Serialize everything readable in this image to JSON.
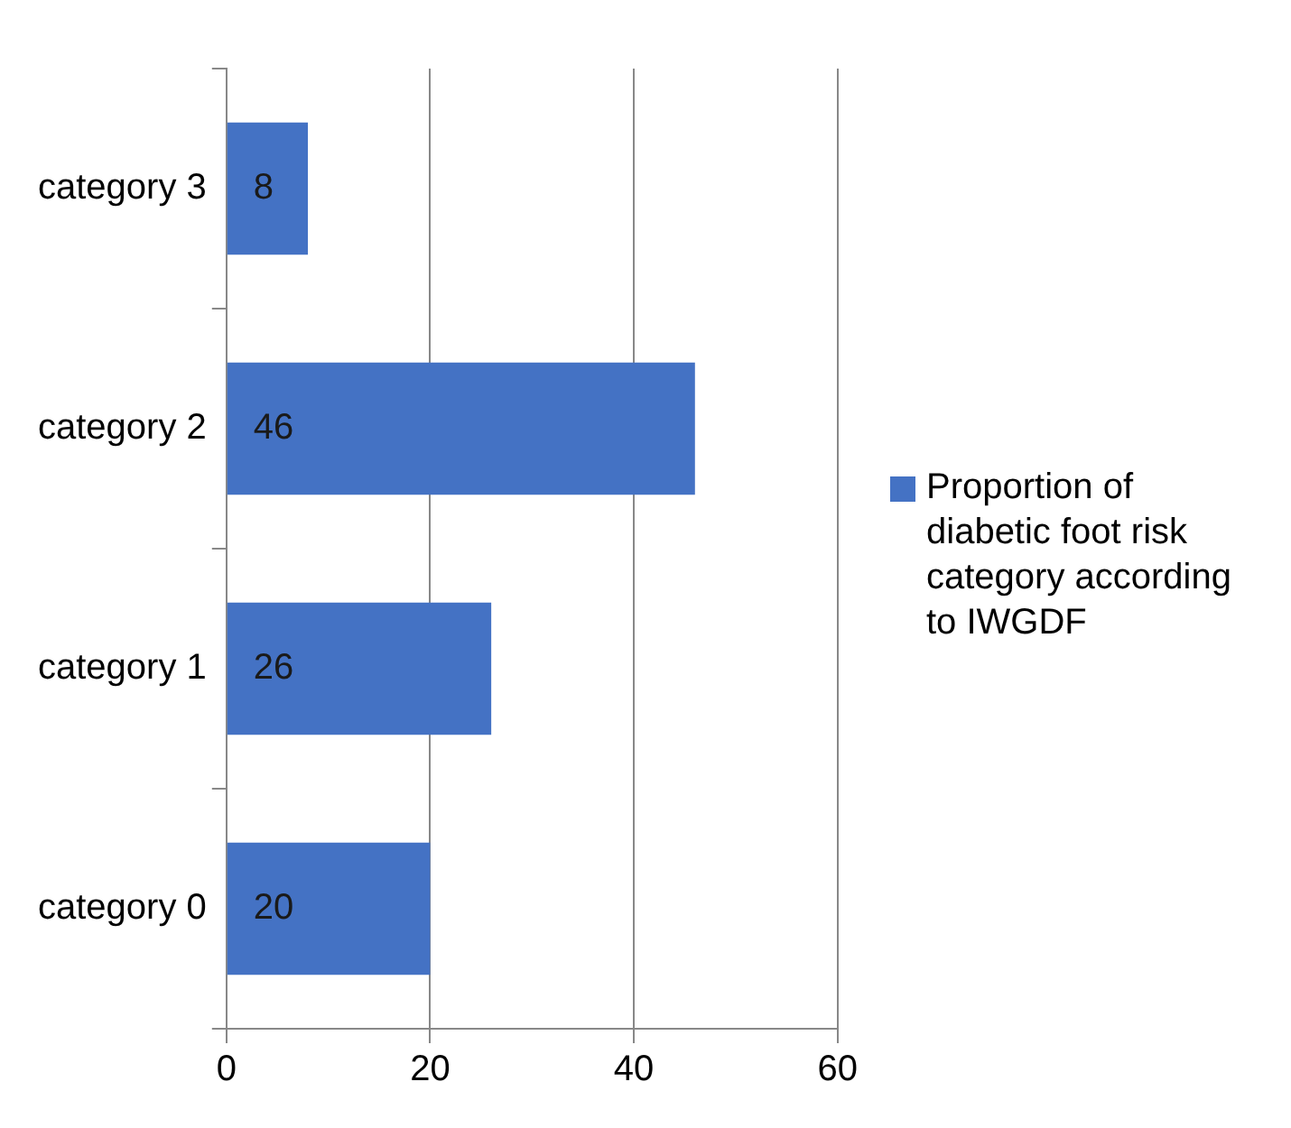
{
  "chart_data": {
    "type": "bar",
    "orientation": "horizontal",
    "categories": [
      "category 3",
      "category 2",
      "category 1",
      "category 0"
    ],
    "series": [
      {
        "name": "Proportion of diabetic foot risk category according to IWGDF",
        "color": "#4472c4",
        "values": [
          8,
          46,
          26,
          20
        ]
      }
    ],
    "xlim": [
      0,
      60
    ],
    "xticks": [
      0,
      20,
      40,
      60
    ],
    "grid": "x",
    "legend": "right",
    "data_labels": true
  }
}
